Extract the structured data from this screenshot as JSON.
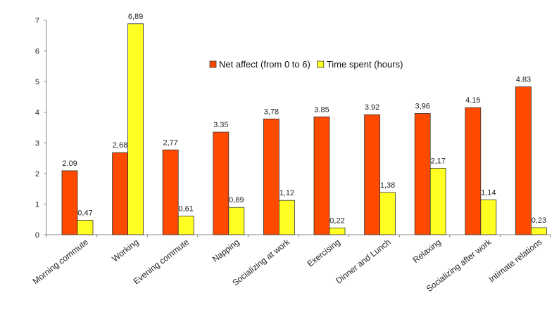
{
  "chart_data": {
    "type": "bar",
    "title": "",
    "xlabel": "",
    "ylabel": "",
    "ylim": [
      0,
      7
    ],
    "yticks": [
      "0",
      "1",
      "2",
      "3",
      "4",
      "5",
      "6",
      "7"
    ],
    "grid": false,
    "legend_position": "top-right",
    "categories": [
      "Morning commute",
      "Working",
      "Evening commute",
      "Napping",
      "Socializing at work",
      "Exercising",
      "Dinner and Lunch",
      "Relaxing",
      "Socializing after work",
      "Intimate relations"
    ],
    "series": [
      {
        "name": "Net affect (from 0 to 6)",
        "color": "#ff4a00",
        "values": [
          2.09,
          2.68,
          2.77,
          3.35,
          3.78,
          3.85,
          3.92,
          3.96,
          4.15,
          4.83
        ],
        "labels": [
          "2.09",
          "2,68",
          "2,77",
          "3.35",
          "3,78",
          "3.85",
          "3.92",
          "3,96",
          "4.15",
          "4.83"
        ]
      },
      {
        "name": "Time spent (hours)",
        "color": "#ffff22",
        "values": [
          0.47,
          6.89,
          0.61,
          0.89,
          1.12,
          0.22,
          1.38,
          2.17,
          1.14,
          0.23
        ],
        "labels": [
          "0,47",
          "6,89",
          "0,61",
          "0,89",
          "1,12",
          "0,22",
          "1,38",
          "2,17",
          "1,14",
          "0,23"
        ]
      }
    ]
  }
}
